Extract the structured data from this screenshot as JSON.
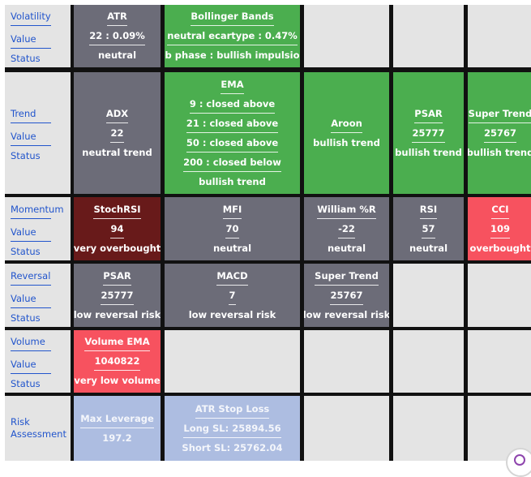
{
  "rows": [
    {
      "labels": [
        "Volatility",
        "Value",
        "Status"
      ],
      "cells": [
        {
          "name": "atr",
          "color": "gray",
          "lines": [
            "ATR",
            "22 : 0.09%",
            "neutral"
          ]
        },
        {
          "name": "bollinger-bands",
          "color": "green",
          "lines": [
            "Bollinger Bands",
            "neutral ecartype : 0.47%",
            "bb phase : bullish impulsion"
          ]
        },
        {
          "name": "empty",
          "color": "empty",
          "lines": []
        },
        {
          "name": "empty",
          "color": "empty",
          "lines": []
        },
        {
          "name": "empty",
          "color": "empty",
          "lines": []
        }
      ]
    },
    {
      "labels": [
        "Trend",
        "Value",
        "Status"
      ],
      "cells": [
        {
          "name": "adx",
          "color": "gray",
          "lines": [
            "ADX",
            "22",
            "neutral trend"
          ]
        },
        {
          "name": "ema",
          "color": "green",
          "lines": [
            "EMA",
            "9 : closed above",
            "21 : closed above",
            "50 : closed above",
            "200 : closed below",
            "bullish trend"
          ]
        },
        {
          "name": "aroon",
          "color": "green",
          "lines": [
            "Aroon",
            "bullish trend"
          ]
        },
        {
          "name": "psar-trend",
          "color": "green",
          "lines": [
            "PSAR",
            "25777",
            "bullish trend"
          ]
        },
        {
          "name": "super-trend-trend",
          "color": "green",
          "lines": [
            "Super Trend",
            "25767",
            "bullish trend"
          ]
        }
      ]
    },
    {
      "labels": [
        "Momentum",
        "Value",
        "Status"
      ],
      "cells": [
        {
          "name": "stochrsi",
          "color": "maroon",
          "lines": [
            "StochRSI",
            "94",
            "very overbought"
          ]
        },
        {
          "name": "mfi",
          "color": "gray",
          "lines": [
            "MFI",
            "70",
            "neutral"
          ]
        },
        {
          "name": "william-r",
          "color": "gray",
          "lines": [
            "William %R",
            "-22",
            "neutral"
          ]
        },
        {
          "name": "rsi",
          "color": "gray",
          "lines": [
            "RSI",
            "57",
            "neutral"
          ]
        },
        {
          "name": "cci",
          "color": "red",
          "lines": [
            "CCI",
            "109",
            "overbought"
          ]
        }
      ]
    },
    {
      "labels": [
        "Reversal",
        "Value",
        "Status"
      ],
      "cells": [
        {
          "name": "psar-reversal",
          "color": "gray",
          "lines": [
            "PSAR",
            "25777",
            "low reversal risk"
          ]
        },
        {
          "name": "macd",
          "color": "gray",
          "lines": [
            "MACD",
            "7",
            "low reversal risk"
          ]
        },
        {
          "name": "super-trend-reversal",
          "color": "gray",
          "lines": [
            "Super Trend",
            "25767",
            "low reversal risk"
          ]
        },
        {
          "name": "empty",
          "color": "empty",
          "lines": []
        },
        {
          "name": "empty",
          "color": "empty",
          "lines": []
        }
      ]
    },
    {
      "labels": [
        "Volume",
        "Value",
        "Status"
      ],
      "cells": [
        {
          "name": "volume-ema",
          "color": "red",
          "lines": [
            "Volume EMA",
            "1040822",
            "very low volume"
          ]
        },
        {
          "name": "empty",
          "color": "empty",
          "lines": []
        },
        {
          "name": "empty",
          "color": "empty",
          "lines": []
        },
        {
          "name": "empty",
          "color": "empty",
          "lines": []
        },
        {
          "name": "empty",
          "color": "empty",
          "lines": []
        }
      ]
    },
    {
      "labels": [
        "Risk",
        "Assessment"
      ],
      "cells": [
        {
          "name": "max-leverage",
          "color": "lightblue",
          "lines": [
            "Max Leverage",
            "197.2"
          ]
        },
        {
          "name": "atr-stop-loss",
          "color": "lightblue",
          "lines": [
            "ATR Stop Loss",
            "Long SL: 25894.56",
            "Short SL: 25762.04"
          ]
        },
        {
          "name": "empty",
          "color": "empty",
          "lines": []
        },
        {
          "name": "empty",
          "color": "empty",
          "lines": []
        },
        {
          "name": "empty",
          "color": "empty",
          "lines": []
        }
      ]
    }
  ]
}
